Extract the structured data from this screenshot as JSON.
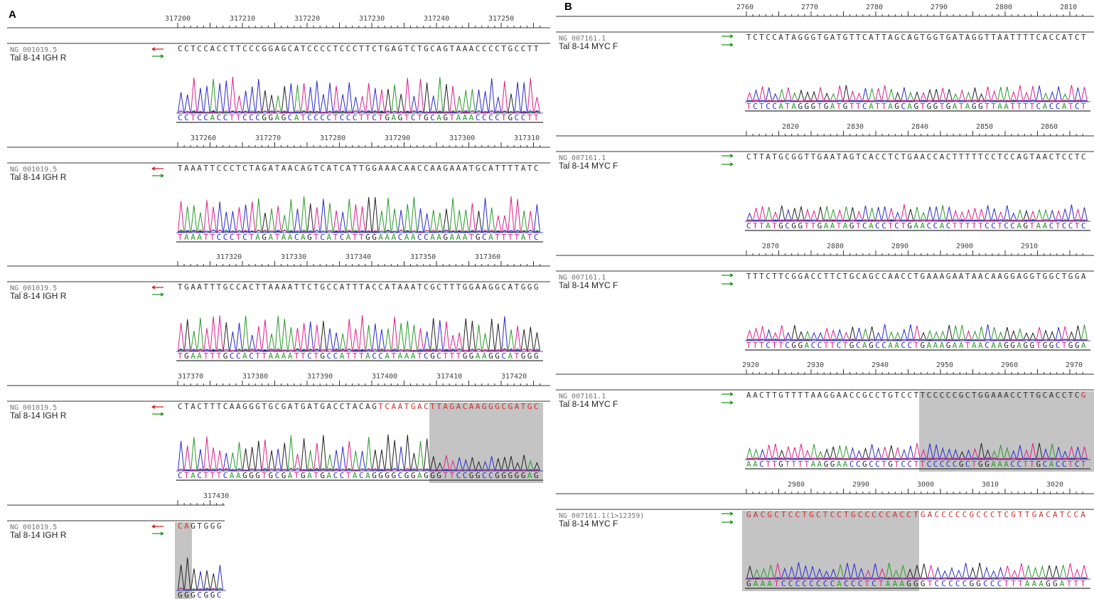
{
  "panels": {
    "A": {
      "label": "A",
      "rows": [
        {
          "ticks": [
            "317200",
            "317210",
            "317220",
            "317230",
            "317240",
            "317250"
          ],
          "accession": "NG_001019.5",
          "sample": "Tal 8-14 IGH R",
          "ref": "CCTCCACCTTCCCGGAGCATCCCCTCCCTTCTGAGTCTGCAGTAAACCCCTGCCTT",
          "read": "CCTCCACCTTCCCGGAGCATCCCCTCCCTTCTGAGTCTGCAGTAAACCCCTGCCTT"
        },
        {
          "ticks": [
            "317260",
            "317270",
            "317280",
            "317290",
            "317300",
            "317310"
          ],
          "accession": "NG_001019.5",
          "sample": "Tal 8-14 IGH R",
          "ref": "TAAATTCCCTCTAGATAACAGTCATCATTGGAAACAACCAAGAAATGCATTTTATC",
          "read": "TAAATTCCCTCTAGATAACAGTCATCATTGGAAACAACCAAGAAATGCATTTTATC"
        },
        {
          "ticks": [
            "317320",
            "317330",
            "317340",
            "317350",
            "317360"
          ],
          "accession": "NG_001019.5",
          "sample": "Tal 8-14 IGH R",
          "ref": "TGAATTTGCCACTTAAAATTCTGCCATTTACCATAAATCGCTTTGGAAGGCATGGG",
          "read": "TGAATTTGCCACTTAAAATTCTGCCATTTACCATAAATCGCTTTGGAAGGCATGGG"
        },
        {
          "ticks": [
            "317370",
            "317380",
            "317390",
            "317400",
            "317410",
            "317420"
          ],
          "accession": "NG_001019.5",
          "sample": "Tal 8-14 IGH R",
          "ref": "CTACTTTCAAGGGTGCGATGATGACCTACAGTCAATGACTTAGACAAGGGCGATGC",
          "read": "CTACTTTCAAGGGTGCGATGATGACCTACAGGGGCGGAGGGTTCCGGCCGGGGGAG"
        },
        {
          "ticks": [
            "317430"
          ],
          "accession": "NG_001019.5",
          "sample": "Tal 8-14 IGH R",
          "ref": "CAGTGGG",
          "read": "GGGCGGC"
        }
      ]
    },
    "B": {
      "label": "B",
      "rows": [
        {
          "ticks": [
            "2760",
            "2770",
            "2780",
            "2790",
            "2800",
            "2810"
          ],
          "accession": "NG_007161.1",
          "sample": "Tal 8-14 MYC F",
          "ref": "TCTCCATAGGGTGATGTTCATTAGCAGTGGTGATAGGTTAATTTTCACCATCT",
          "read": "TCTCCATAGGGTGATGTTCATTAGCAGTGGTGATAGGTTAATTTTCACCATCT"
        },
        {
          "ticks": [
            "2820",
            "2830",
            "2840",
            "2850",
            "2860"
          ],
          "accession": "NG_007161.1",
          "sample": "Tal 8-14 MYC F",
          "ref": "CTTATGCGGTTGAATAGTCACCTCTGAACCACTTTTTCCTCCAGTAACTCCTC",
          "read": "CTTATGCGGTTGAATAGTCACCTCTGAACCACTTTTTCCTCCAGTAACTCCTC"
        },
        {
          "ticks": [
            "2870",
            "2880",
            "2890",
            "2900",
            "2910"
          ],
          "accession": "NG_007161.1",
          "sample": "Tal 8-14 MYC F",
          "ref": "TTTCTTCGGACCTTCTGCAGCCAACCTGAAAGAATAACAAGGAGGTGGCTGGA",
          "read": "TTTCTTCGGACCTTCTGCAGCCAACCTGAAAGAATAACAAGGAGGTGGCTGGA"
        },
        {
          "ticks": [
            "2920",
            "2930",
            "2940",
            "2950",
            "2960",
            "2970"
          ],
          "accession": "NG_007161.1",
          "sample": "Tal 8-14 MYC F",
          "ref": "AACTTGTTTTAAGGAACCGCCTGTCCTTCCCCCGCTGGAAACCTTGCACCTCG",
          "read": "AACTTGTTTTAAGGAACCGCCTGTCCTTCCCCCGCTGGAAACCTTGCACCTCT"
        },
        {
          "ticks": [
            "2980",
            "2990",
            "3000",
            "3010",
            "3020"
          ],
          "accession": "NG_007161.1(1>12359)",
          "sample": "Tal 8-14 MYC F",
          "ref": "GACGCTCCTGCTCCTGCCCCCACCTGACCCCCGCCCTCGTTGACATCCA",
          "read": "GAAATCCCCCCCCACCCTCTAAAGGGTCCCCCGGCCCTTTAAAGGATTT"
        }
      ]
    }
  },
  "colors": {
    "A": "#2a9a2a",
    "C": "#2a2ad0",
    "G": "#222222",
    "T": "#e0208a",
    "mismatch": "#d03030",
    "highlight": "#c4c4c4",
    "arrow_rev": "#cc2020",
    "arrow_fwd": "#229922"
  }
}
